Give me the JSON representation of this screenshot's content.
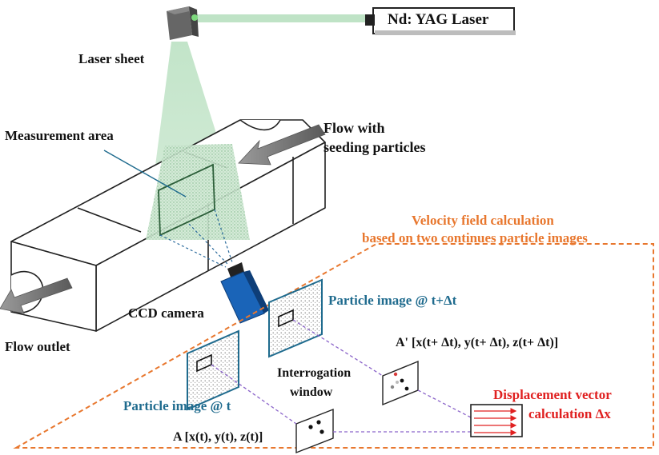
{
  "labels": {
    "laser": "Nd: YAG Laser",
    "laser_sheet": "Laser sheet",
    "measurement_area": "Measurement area",
    "flow_in_line1": "Flow with",
    "flow_in_line2": "seeding particles",
    "ccd_camera": "CCD camera",
    "flow_outlet": "Flow outlet",
    "velocity_line1": "Velocity field calculation",
    "velocity_line2": "based on two continues particle images",
    "particle_image_t_dt": "Particle image @ t+Δt",
    "particle_image_t": "Particle image @ t",
    "a_prime": "A' [x(t+ Δt), y(t+ Δt), z(t+ Δt)]",
    "a": "A [x(t), y(t), z(t)]",
    "interrogation_line1": "Interrogation",
    "interrogation_line2": "window",
    "displacement_line1": "Displacement vector",
    "displacement_line2": "calculation Δx"
  },
  "colors": {
    "orange_accent": "#e8772e",
    "blue_label": "#1f6b8e",
    "red_label": "#e02020",
    "laser_green": "#bfe3c6",
    "camera_blue": "#1a64b8",
    "connector_purple": "#8a63c9"
  }
}
